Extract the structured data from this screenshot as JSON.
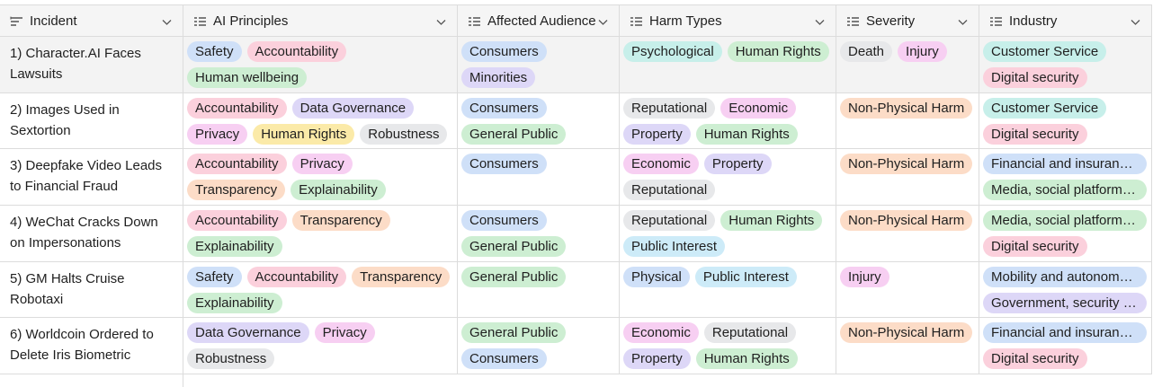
{
  "columns": [
    {
      "label": "Incident",
      "icon": "text-field-icon"
    },
    {
      "label": "AI Principles",
      "icon": "multi-select-field-icon"
    },
    {
      "label": "Affected Audience",
      "icon": "multi-select-field-icon"
    },
    {
      "label": "Harm Types",
      "icon": "multi-select-field-icon"
    },
    {
      "label": "Severity",
      "icon": "multi-select-field-icon"
    },
    {
      "label": "Industry",
      "icon": "multi-select-field-icon"
    }
  ],
  "tag_colors": {
    "blue": "#cfe0f8",
    "pink": "#fbd0dc",
    "green": "#cdeed2",
    "purple": "#ddd7f7",
    "yellow": "#fbeaa8",
    "gray": "#e7e8ea",
    "orange": "#fcdcc7",
    "teal": "#c7efea",
    "magenta": "#f7cff2",
    "cyan": "#cdebf8"
  },
  "rows": [
    {
      "incident": "1) Character.AI Faces Lawsuits",
      "principles": [
        {
          "t": "Safety",
          "c": "blue"
        },
        {
          "t": "Accountability",
          "c": "pink"
        },
        {
          "t": "Human wellbeing",
          "c": "green"
        }
      ],
      "audience": [
        {
          "t": "Consumers",
          "c": "blue"
        },
        {
          "t": "Minorities",
          "c": "purple"
        }
      ],
      "harms": [
        {
          "t": "Psychological",
          "c": "teal"
        },
        {
          "t": "Human Rights",
          "c": "green"
        }
      ],
      "severity": [
        {
          "t": "Death",
          "c": "gray"
        },
        {
          "t": "Injury",
          "c": "magenta"
        }
      ],
      "industry": [
        {
          "t": "Customer Service",
          "c": "teal"
        },
        {
          "t": "Digital security",
          "c": "pink"
        }
      ]
    },
    {
      "incident": "2) Images Used in Sextortion",
      "principles": [
        {
          "t": "Accountability",
          "c": "pink"
        },
        {
          "t": "Data Governance",
          "c": "purple"
        },
        {
          "t": "Privacy",
          "c": "magenta"
        },
        {
          "t": "Human Rights",
          "c": "yellow"
        },
        {
          "t": "Robustness",
          "c": "gray"
        }
      ],
      "audience": [
        {
          "t": "Consumers",
          "c": "blue"
        },
        {
          "t": "General Public",
          "c": "green"
        }
      ],
      "harms": [
        {
          "t": "Reputational",
          "c": "gray"
        },
        {
          "t": "Economic",
          "c": "magenta"
        },
        {
          "t": "Property",
          "c": "purple"
        },
        {
          "t": "Human Rights",
          "c": "green"
        }
      ],
      "severity": [
        {
          "t": "Non-Physical Harm",
          "c": "orange"
        }
      ],
      "industry": [
        {
          "t": "Customer Service",
          "c": "teal"
        },
        {
          "t": "Digital security",
          "c": "pink"
        }
      ]
    },
    {
      "incident": "3) Deepfake Video Leads to Financial Fraud",
      "principles": [
        {
          "t": "Accountability",
          "c": "pink"
        },
        {
          "t": "Privacy",
          "c": "magenta"
        },
        {
          "t": "Transparency",
          "c": "orange"
        },
        {
          "t": "Explainability",
          "c": "green"
        }
      ],
      "audience": [
        {
          "t": "Consumers",
          "c": "blue"
        }
      ],
      "harms": [
        {
          "t": "Economic",
          "c": "magenta"
        },
        {
          "t": "Property",
          "c": "purple"
        },
        {
          "t": "Reputational",
          "c": "gray"
        }
      ],
      "severity": [
        {
          "t": "Non-Physical Harm",
          "c": "orange"
        }
      ],
      "industry": [
        {
          "t": "Financial and insurance services",
          "c": "blue"
        },
        {
          "t": "Media, social platforms, marketing",
          "c": "green"
        }
      ]
    },
    {
      "incident": "4) WeChat Cracks Down on Impersonations",
      "principles": [
        {
          "t": "Accountability",
          "c": "pink"
        },
        {
          "t": "Transparency",
          "c": "orange"
        },
        {
          "t": "Explainability",
          "c": "green"
        }
      ],
      "audience": [
        {
          "t": "Consumers",
          "c": "blue"
        },
        {
          "t": "General Public",
          "c": "green"
        }
      ],
      "harms": [
        {
          "t": "Reputational",
          "c": "gray"
        },
        {
          "t": "Human Rights",
          "c": "green"
        },
        {
          "t": "Public Interest",
          "c": "cyan"
        }
      ],
      "severity": [
        {
          "t": "Non-Physical Harm",
          "c": "orange"
        }
      ],
      "industry": [
        {
          "t": "Media, social platforms, marketing",
          "c": "green"
        },
        {
          "t": "Digital security",
          "c": "pink"
        }
      ]
    },
    {
      "incident": "5) GM Halts Cruise Robotaxi",
      "principles": [
        {
          "t": "Safety",
          "c": "blue"
        },
        {
          "t": "Accountability",
          "c": "pink"
        },
        {
          "t": "Transparency",
          "c": "orange"
        },
        {
          "t": "Explainability",
          "c": "green"
        }
      ],
      "audience": [
        {
          "t": "General Public",
          "c": "green"
        }
      ],
      "harms": [
        {
          "t": "Physical",
          "c": "blue"
        },
        {
          "t": "Public Interest",
          "c": "cyan"
        }
      ],
      "severity": [
        {
          "t": "Injury",
          "c": "magenta"
        }
      ],
      "industry": [
        {
          "t": "Mobility and autonomous vehicles",
          "c": "blue"
        },
        {
          "t": "Government, security and defence",
          "c": "purple"
        }
      ]
    },
    {
      "incident": "6) Worldcoin Ordered to Delete Iris Biometric",
      "principles": [
        {
          "t": "Data Governance",
          "c": "purple"
        },
        {
          "t": "Privacy",
          "c": "magenta"
        },
        {
          "t": "Robustness",
          "c": "gray"
        }
      ],
      "audience": [
        {
          "t": "General Public",
          "c": "green"
        },
        {
          "t": "Consumers",
          "c": "blue"
        }
      ],
      "harms": [
        {
          "t": "Economic",
          "c": "magenta"
        },
        {
          "t": "Reputational",
          "c": "gray"
        },
        {
          "t": "Property",
          "c": "purple"
        },
        {
          "t": "Human Rights",
          "c": "green"
        }
      ],
      "severity": [
        {
          "t": "Non-Physical Harm",
          "c": "orange"
        }
      ],
      "industry": [
        {
          "t": "Financial and insurance services",
          "c": "blue"
        },
        {
          "t": "Digital security",
          "c": "pink"
        }
      ]
    }
  ]
}
